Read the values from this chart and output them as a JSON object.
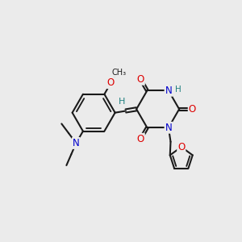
{
  "bg": "#ebebeb",
  "bond_color": "#1a1a1a",
  "bw": 1.5,
  "colors": {
    "O": "#dd0000",
    "N": "#0000cc",
    "H": "#208080",
    "C": "#1a1a1a"
  },
  "fs": 8.5,
  "dbo": 0.05
}
